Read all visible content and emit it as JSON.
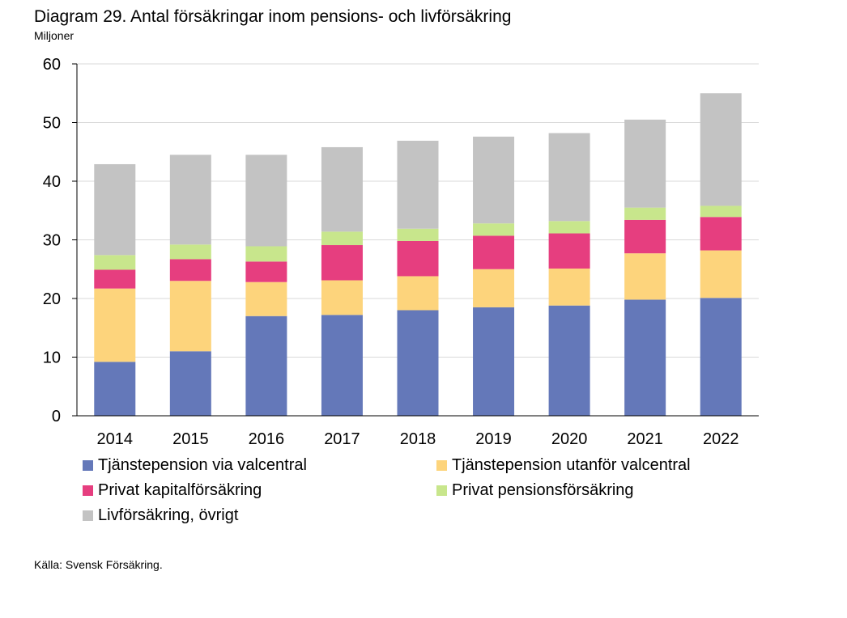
{
  "header": {
    "title": "Diagram 29. Antal försäkringar inom pensions- och livförsäkring",
    "unit": "Miljoner"
  },
  "footer": {
    "source": "Källa: Svensk Försäkring."
  },
  "chart_data": {
    "type": "bar",
    "stacked": true,
    "title": "Diagram 29. Antal försäkringar inom pensions- och livförsäkring",
    "ylabel": "Miljoner",
    "xlabel": "",
    "ylim": [
      0,
      60
    ],
    "yticks": [
      0,
      10,
      20,
      30,
      40,
      50,
      60
    ],
    "grid": true,
    "legend_position": "bottom",
    "categories": [
      "2014",
      "2015",
      "2016",
      "2017",
      "2018",
      "2019",
      "2020",
      "2021",
      "2022"
    ],
    "series": [
      {
        "name": "Tjänstepension via valcentral",
        "color": "#6478b9",
        "values": [
          9.2,
          11.0,
          17.0,
          17.2,
          18.0,
          18.5,
          18.8,
          19.8,
          20.1
        ]
      },
      {
        "name": "Tjänstepension utanför valcentral",
        "color": "#fdd47c",
        "values": [
          12.5,
          12.0,
          5.8,
          5.9,
          5.8,
          6.5,
          6.3,
          7.9,
          8.1
        ]
      },
      {
        "name": "Privat kapitalförsäkring",
        "color": "#e63e7f",
        "values": [
          3.2,
          3.7,
          3.5,
          6.0,
          6.0,
          5.7,
          6.0,
          5.7,
          5.7
        ]
      },
      {
        "name": "Privat pensionsförsäkring",
        "color": "#c8e68c",
        "values": [
          2.5,
          2.5,
          2.6,
          2.3,
          2.1,
          2.1,
          2.1,
          2.1,
          1.9
        ]
      },
      {
        "name": "Livförsäkring, övrigt",
        "color": "#c3c3c3",
        "values": [
          15.5,
          15.3,
          15.6,
          14.4,
          15.0,
          14.8,
          15.0,
          15.0,
          19.2
        ]
      }
    ]
  }
}
